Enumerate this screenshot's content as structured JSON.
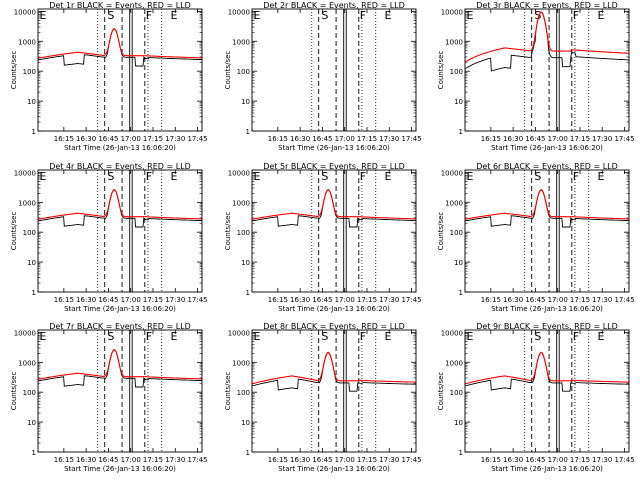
{
  "colors": {
    "events": "#000000",
    "lld": "#ff0000",
    "background": "#ffffff"
  },
  "common": {
    "xtick_labels": [
      "16:15",
      "16:30",
      "16:45",
      "17:00",
      "17:15",
      "17:30",
      "17:45"
    ],
    "ytick_labels": [
      "1",
      "10",
      "100",
      "1000",
      "10000"
    ],
    "ylabel": "Counts/sec",
    "xlabel": "Start Time (26-Jan-13 16:06:20)",
    "markers": [
      "E",
      "S",
      "F",
      "E"
    ]
  },
  "chart_data": [
    {
      "type": "line",
      "title": "Det 1r BLACK = Events, RED = LLD",
      "xlabel": "Start Time (26-Jan-13 16:06:20)",
      "ylabel": "Counts/sec",
      "xtick_labels": [
        "16:15",
        "16:30",
        "16:45",
        "17:00",
        "17:15",
        "17:30",
        "17:45"
      ],
      "ytick_labels": [
        "1",
        "10",
        "100",
        "1000",
        "10000"
      ],
      "ylim": [
        1,
        12000
      ],
      "yscale": "log",
      "xrange_min": [
        -8.7,
        101.7
      ],
      "vlines_dotted_min": [
        -8.7,
        31.5,
        65.3,
        74.6,
        101.7
      ],
      "vlines_dashed_min": [
        36.2,
        47.9,
        63.2
      ],
      "vlines_solid_min": [
        53.7
      ],
      "markers": [
        "E",
        "S",
        "F",
        "E"
      ],
      "series": [],
      "has_data": true
    },
    {
      "type": "line",
      "title": "Det 2r BLACK = Events, RED = LLD",
      "xlabel": "Start Time (26-Jan-13 16:06:20)",
      "ylabel": "Counts/sec",
      "xtick_labels": [
        "16:15",
        "16:30",
        "16:45",
        "17:00",
        "17:15",
        "17:30",
        "17:45"
      ],
      "ytick_labels": [
        "1",
        "10",
        "100",
        "1000",
        "10000"
      ],
      "ylim": [
        1,
        12000
      ],
      "yscale": "log",
      "xrange_min": [
        -8.7,
        101.7
      ],
      "vlines_dotted_min": [
        -8.7,
        31.5,
        65.3,
        74.6,
        101.7
      ],
      "vlines_dashed_min": [
        36.2,
        47.9,
        63.2
      ],
      "vlines_solid_min": [
        53.7
      ],
      "markers": [
        "E",
        "S",
        "F",
        "E"
      ],
      "series": [],
      "has_data": false
    },
    {
      "type": "line",
      "title": "Det 3r BLACK = Events, RED = LLD",
      "xlabel": "Start Time (26-Jan-13 16:06:20)",
      "ylabel": "Counts/sec",
      "xtick_labels": [
        "16:15",
        "16:30",
        "16:45",
        "17:00",
        "17:15",
        "17:30",
        "17:45"
      ],
      "ytick_labels": [
        "1",
        "10",
        "100",
        "1000",
        "10000"
      ],
      "ylim": [
        1,
        12000
      ],
      "yscale": "log",
      "xrange_min": [
        -8.7,
        101.7
      ],
      "vlines_dotted_min": [
        -8.7,
        31.5,
        65.3,
        74.6,
        101.7
      ],
      "vlines_dashed_min": [
        36.2,
        47.9,
        63.2
      ],
      "vlines_solid_min": [
        53.7
      ],
      "markers": [
        "E",
        "S",
        "F",
        "E"
      ],
      "series": [],
      "has_data": true
    },
    {
      "type": "line",
      "title": "Det 4r BLACK = Events, RED = LLD",
      "xlabel": "Start Time (26-Jan-13 16:06:20)",
      "ylabel": "Counts/sec",
      "xtick_labels": [
        "16:15",
        "16:30",
        "16:45",
        "17:00",
        "17:15",
        "17:30",
        "17:45"
      ],
      "ytick_labels": [
        "1",
        "10",
        "100",
        "1000",
        "10000"
      ],
      "ylim": [
        1,
        12000
      ],
      "yscale": "log",
      "xrange_min": [
        -8.7,
        101.7
      ],
      "vlines_dotted_min": [
        -8.7,
        31.5,
        65.3,
        74.6,
        101.7
      ],
      "vlines_dashed_min": [
        36.2,
        47.9,
        63.2
      ],
      "vlines_solid_min": [
        53.7
      ],
      "markers": [
        "E",
        "S",
        "F",
        "E"
      ],
      "series": [],
      "has_data": true
    },
    {
      "type": "line",
      "title": "Det 5r BLACK = Events, RED = LLD",
      "xlabel": "Start Time (26-Jan-13 16:06:20)",
      "ylabel": "Counts/sec",
      "xtick_labels": [
        "16:15",
        "16:30",
        "16:45",
        "17:00",
        "17:15",
        "17:30",
        "17:45"
      ],
      "ytick_labels": [
        "1",
        "10",
        "100",
        "1000",
        "10000"
      ],
      "ylim": [
        1,
        12000
      ],
      "yscale": "log",
      "xrange_min": [
        -8.7,
        101.7
      ],
      "vlines_dotted_min": [
        -8.7,
        31.5,
        65.3,
        74.6,
        101.7
      ],
      "vlines_dashed_min": [
        36.2,
        47.9,
        63.2
      ],
      "vlines_solid_min": [
        53.7
      ],
      "markers": [
        "E",
        "S",
        "F",
        "E"
      ],
      "series": [],
      "has_data": true
    },
    {
      "type": "line",
      "title": "Det 6r BLACK = Events, RED = LLD",
      "xlabel": "Start Time (26-Jan-13 16:06:20)",
      "ylabel": "Counts/sec",
      "xtick_labels": [
        "16:15",
        "16:30",
        "16:45",
        "17:00",
        "17:15",
        "17:30",
        "17:45"
      ],
      "ytick_labels": [
        "1",
        "10",
        "100",
        "1000",
        "10000"
      ],
      "ylim": [
        1,
        12000
      ],
      "yscale": "log",
      "xrange_min": [
        -8.7,
        101.7
      ],
      "vlines_dotted_min": [
        -8.7,
        31.5,
        65.3,
        74.6,
        101.7
      ],
      "vlines_dashed_min": [
        36.2,
        47.9,
        63.2
      ],
      "vlines_solid_min": [
        53.7
      ],
      "markers": [
        "E",
        "S",
        "F",
        "E"
      ],
      "series": [],
      "has_data": true
    },
    {
      "type": "line",
      "title": "Det 7r BLACK = Events, RED = LLD",
      "xlabel": "Start Time (26-Jan-13 16:06:20)",
      "ylabel": "Counts/sec",
      "xtick_labels": [
        "16:15",
        "16:30",
        "16:45",
        "17:00",
        "17:15",
        "17:30",
        "17:45"
      ],
      "ytick_labels": [
        "1",
        "10",
        "100",
        "1000",
        "10000"
      ],
      "ylim": [
        1,
        12000
      ],
      "yscale": "log",
      "xrange_min": [
        -8.7,
        101.7
      ],
      "vlines_dotted_min": [
        -8.7,
        31.5,
        65.3,
        74.6,
        101.7
      ],
      "vlines_dashed_min": [
        36.2,
        47.9,
        63.2
      ],
      "vlines_solid_min": [
        53.7
      ],
      "markers": [
        "E",
        "S",
        "F",
        "E"
      ],
      "series": [],
      "has_data": true
    },
    {
      "type": "line",
      "title": "Det 8r BLACK = Events, RED = LLD",
      "xlabel": "Start Time (26-Jan-13 16:06:20)",
      "ylabel": "Counts/sec",
      "xtick_labels": [
        "16:15",
        "16:30",
        "16:45",
        "17:00",
        "17:15",
        "17:30",
        "17:45"
      ],
      "ytick_labels": [
        "1",
        "10",
        "100",
        "1000",
        "10000"
      ],
      "ylim": [
        1,
        12000
      ],
      "yscale": "log",
      "xrange_min": [
        -8.7,
        101.7
      ],
      "vlines_dotted_min": [
        -8.7,
        31.5,
        65.3,
        74.6,
        101.7
      ],
      "vlines_dashed_min": [
        36.2,
        47.9,
        63.2
      ],
      "vlines_solid_min": [
        53.7
      ],
      "markers": [
        "E",
        "S",
        "F",
        "E"
      ],
      "series": [],
      "has_data": true
    },
    {
      "type": "line",
      "title": "Det 9r BLACK = Events, RED = LLD",
      "xlabel": "Start Time (26-Jan-13 16:06:20)",
      "ylabel": "Counts/sec",
      "xtick_labels": [
        "16:15",
        "16:30",
        "16:45",
        "17:00",
        "17:15",
        "17:30",
        "17:45"
      ],
      "ytick_labels": [
        "1",
        "10",
        "100",
        "1000",
        "10000"
      ],
      "ylim": [
        1,
        12000
      ],
      "yscale": "log",
      "xrange_min": [
        -8.7,
        101.7
      ],
      "vlines_dotted_min": [
        -8.7,
        31.5,
        65.3,
        74.6,
        101.7
      ],
      "vlines_dashed_min": [
        36.2,
        47.9,
        63.2
      ],
      "vlines_solid_min": [
        53.7
      ],
      "markers": [
        "E",
        "S",
        "F",
        "E"
      ],
      "series": [],
      "has_data": true
    }
  ]
}
